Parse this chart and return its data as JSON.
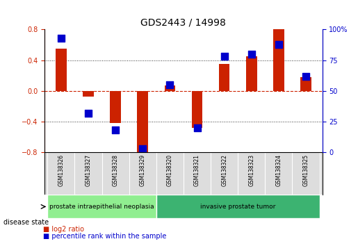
{
  "title": "GDS2443 / 14998",
  "samples": [
    "GSM138326",
    "GSM138327",
    "GSM138328",
    "GSM138329",
    "GSM138320",
    "GSM138321",
    "GSM138322",
    "GSM138323",
    "GSM138324",
    "GSM138325"
  ],
  "log2_ratio": [
    0.55,
    -0.07,
    -0.42,
    -0.82,
    0.07,
    -0.48,
    0.35,
    0.45,
    0.82,
    0.18
  ],
  "percentile_rank": [
    93,
    32,
    18,
    3,
    55,
    20,
    78,
    80,
    88,
    62
  ],
  "disease_groups": [
    {
      "label": "prostate intraepithelial neoplasia",
      "start": 0,
      "end": 4,
      "color": "#90EE90"
    },
    {
      "label": "invasive prostate tumor",
      "start": 4,
      "end": 10,
      "color": "#3CB371"
    }
  ],
  "ylim": [
    -0.8,
    0.8
  ],
  "y2lim": [
    0,
    100
  ],
  "yticks": [
    -0.8,
    -0.4,
    0.0,
    0.4,
    0.8
  ],
  "y2ticks": [
    0,
    25,
    50,
    75,
    100
  ],
  "bar_color": "#CC2200",
  "dot_color": "#0000CC",
  "zero_line_color": "#CC2200",
  "grid_color": "#333333",
  "bg_color": "#FFFFFF",
  "bar_width": 0.4,
  "dot_size": 50
}
